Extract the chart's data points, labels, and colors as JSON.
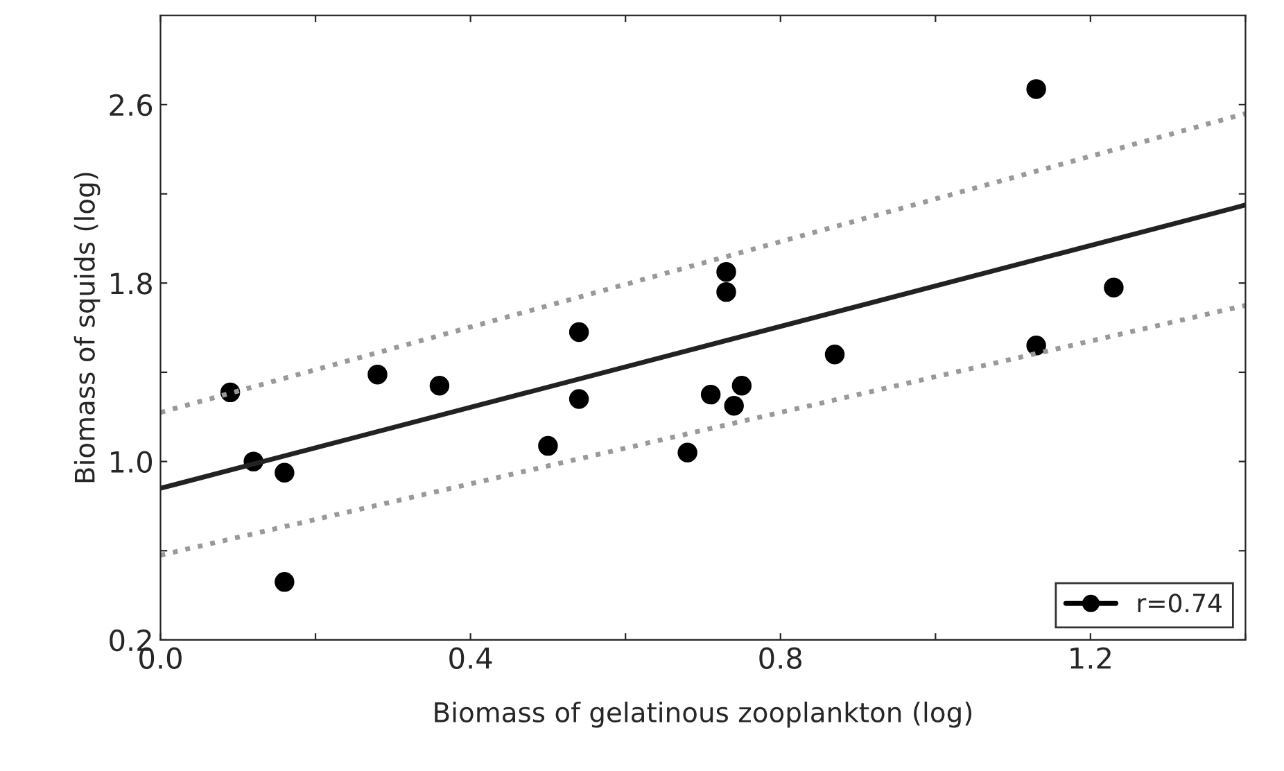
{
  "chart_data": {
    "type": "scatter",
    "xlabel": "Biomass of gelatinous zooplankton (log)",
    "ylabel": "Biomass of squids (log)",
    "xlim": [
      0.0,
      1.4
    ],
    "ylim": [
      0.2,
      3.0
    ],
    "xticks": [
      {
        "value": 0.0,
        "label": "0.0"
      },
      {
        "value": 0.2,
        "label": null
      },
      0.4,
      {
        "value": 0.6,
        "label": null
      },
      0.8,
      {
        "value": 1.0,
        "label": null
      },
      1.2,
      {
        "value": 1.4,
        "label": null
      }
    ],
    "yticks": [
      0.2,
      {
        "value": 0.6,
        "label": null
      },
      {
        "value": 1.0,
        "label": "1.0"
      },
      {
        "value": 1.4,
        "label": null
      },
      1.8,
      {
        "value": 2.2,
        "label": null
      },
      2.6
    ],
    "grid": false,
    "legend": "bottom right",
    "series": [
      {
        "name": "r=0.74",
        "color": "#000000",
        "marker": "circle",
        "x": [
          0.09,
          0.12,
          0.16,
          0.16,
          0.28,
          0.36,
          0.5,
          0.54,
          0.54,
          0.68,
          0.71,
          0.73,
          0.73,
          0.74,
          0.75,
          0.87,
          1.13,
          1.13,
          1.23
        ],
        "values": [
          1.31,
          1.0,
          0.95,
          0.46,
          1.39,
          1.34,
          1.07,
          1.28,
          1.58,
          1.04,
          1.3,
          1.85,
          1.76,
          1.25,
          1.34,
          1.48,
          2.67,
          1.52,
          1.78
        ]
      },
      {
        "type": "line",
        "color": "#222222",
        "line_style": "solid",
        "x": [
          0.0,
          1.4
        ],
        "values": [
          0.88,
          2.15
        ]
      },
      {
        "type": "line",
        "color": "#999999",
        "line_style": "dotted",
        "x": [
          0.0,
          1.4
        ],
        "values": [
          1.22,
          2.56
        ]
      },
      {
        "type": "line",
        "color": "#999999",
        "line_style": "dotted",
        "x": [
          0.0,
          1.4
        ],
        "values": [
          0.58,
          1.7
        ]
      }
    ]
  }
}
